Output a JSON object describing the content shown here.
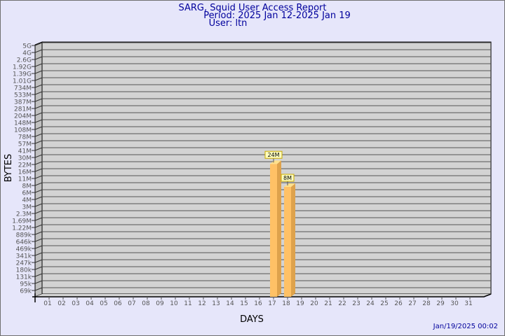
{
  "header": {
    "title": "SARG, Squid User Access Report",
    "period": "Period: 2025 Jan 12-2025 Jan 19",
    "user": "User: ltn"
  },
  "timestamp": "Jan/19/2025 00:02",
  "colors": {
    "background": "#e6e6fa",
    "wall": "#d3d3d3",
    "bar_front": "#ffc166",
    "bar_side": "#dea24c",
    "bar_top": "#ffe08c",
    "label_bg": "#ffffc0",
    "title": "#00009c"
  },
  "chart_data": {
    "type": "bar",
    "style": "3d",
    "xlabel": "DAYS",
    "ylabel": "BYTES",
    "y_scale": "log",
    "grid": true,
    "y_ticks": [
      "5G",
      "4G",
      "2.6G",
      "1.92G",
      "1.39G",
      "1.01G",
      "734M",
      "533M",
      "387M",
      "281M",
      "204M",
      "148M",
      "108M",
      "78M",
      "57M",
      "41M",
      "30M",
      "22M",
      "16M",
      "11M",
      "8M",
      "6M",
      "4M",
      "3M",
      "2.3M",
      "1.69M",
      "1.22M",
      "889k",
      "646k",
      "469k",
      "341k",
      "247k",
      "180k",
      "131k",
      "95k",
      "69k"
    ],
    "categories": [
      "01",
      "02",
      "03",
      "04",
      "05",
      "06",
      "07",
      "08",
      "09",
      "10",
      "11",
      "12",
      "13",
      "14",
      "15",
      "16",
      "17",
      "18",
      "19",
      "20",
      "21",
      "22",
      "23",
      "24",
      "25",
      "26",
      "27",
      "28",
      "29",
      "30",
      "31"
    ],
    "bars": [
      {
        "day": "17",
        "value": 24000000,
        "label": "24M"
      },
      {
        "day": "18",
        "value": 8000000,
        "label": "8M"
      }
    ]
  }
}
